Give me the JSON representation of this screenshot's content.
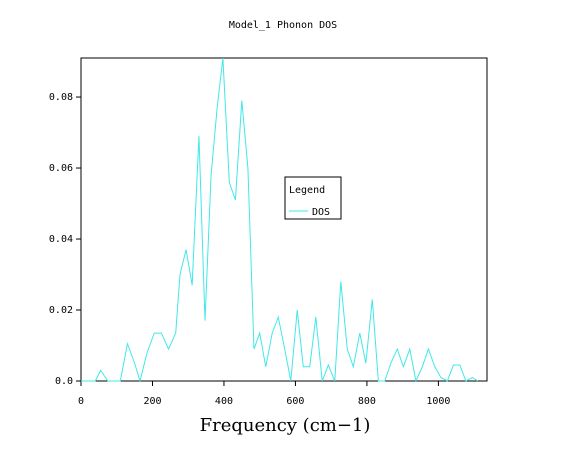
{
  "chart_data": {
    "type": "line",
    "title": "Model_1 Phonon DOS",
    "x_label": "Frequency (cm−1)",
    "legend_title": "Legend",
    "xlim": [
      0,
      1136
    ],
    "ylim": [
      0,
      0.091
    ],
    "xticks": [
      0,
      200,
      400,
      600,
      800,
      1000
    ],
    "yticks": [
      {
        "value": 0,
        "label": "0.0"
      },
      0.02,
      0.04,
      0.06,
      0.08
    ],
    "x": [
      0,
      40,
      55,
      75,
      110,
      130,
      150,
      165,
      185,
      205,
      225,
      245,
      265,
      277,
      294,
      311,
      330,
      347,
      364,
      381,
      397,
      415,
      432,
      450,
      467,
      484,
      500,
      517,
      535,
      552,
      570,
      587,
      605,
      622,
      640,
      657,
      675,
      692,
      710,
      727,
      745,
      762,
      780,
      797,
      815,
      832,
      850,
      867,
      885,
      902,
      920,
      937,
      955,
      972,
      990,
      1007,
      1025,
      1042,
      1060,
      1077,
      1095,
      1110
    ],
    "series": [
      {
        "name": "DOS",
        "color": "#40e8e8",
        "values": [
          0,
          0,
          0.003,
          0,
          0,
          0.0105,
          0.005,
          0,
          0.008,
          0.0135,
          0.0135,
          0.009,
          0.0135,
          0.03,
          0.037,
          0.027,
          0.069,
          0.017,
          0.058,
          0.077,
          0.091,
          0.056,
          0.051,
          0.079,
          0.06,
          0.009,
          0.0135,
          0.004,
          0.0135,
          0.018,
          0.009,
          0,
          0.02,
          0.004,
          0.004,
          0.018,
          0,
          0.0045,
          0,
          0.028,
          0.009,
          0.004,
          0.0135,
          0.005,
          0.023,
          0,
          0,
          0.005,
          0.009,
          0.004,
          0.009,
          0,
          0.004,
          0.009,
          0.004,
          0.001,
          0,
          0.0045,
          0.0045,
          0,
          0.001,
          0
        ]
      }
    ]
  }
}
